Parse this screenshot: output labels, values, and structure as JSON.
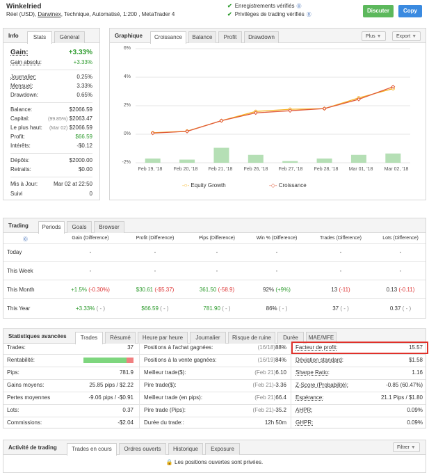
{
  "header": {
    "name": "Winkelried",
    "info_prefix": "Réel (USD),",
    "broker": "Darwinex",
    "info_suffix": ", Technique, Automatisé, 1:200 , MetaTrader 4",
    "verified_1": "Enregistrements vérifiés",
    "verified_2": "Privilèges de trading vérifiés",
    "btn_discuss": "Discuter",
    "btn_copy": "Copy",
    "colors": {
      "discuss": "#5cb85c",
      "copy": "#3a8ae0"
    }
  },
  "info": {
    "tabs": [
      "Info",
      "Stats",
      "Général"
    ],
    "gain_label": "Gain:",
    "gain_value": "+3.33%",
    "abs_label": "Gain absolu:",
    "abs_value": "+3.33%",
    "daily_label": "Journalier:",
    "daily_value": "0.25%",
    "monthly_label": "Mensuel:",
    "monthly_value": "3.33%",
    "dd_label": "Drawdown:",
    "dd_value": "0.65%",
    "balance_label": "Balance:",
    "balance_value": "$2066.59",
    "equity_label": "Capital:",
    "equity_pct": "(99.85%)",
    "equity_value": "$2063.47",
    "high_label": "Le plus haut:",
    "high_date": "(Mar 02)",
    "high_value": "$2066.59",
    "profit_label": "Profit:",
    "profit_value": "$66.59",
    "interest_label": "Intérêts:",
    "interest_value": "-$0.12",
    "deposits_label": "Dépôts:",
    "deposits_value": "$2000.00",
    "withdraw_label": "Retraits:",
    "withdraw_value": "$0.00",
    "updated_label": "Mis à Jour:",
    "updated_value": "Mar 02 at 22:50",
    "follow_label": "Suivi",
    "follow_value": "0"
  },
  "graph": {
    "title": "Graphique",
    "tabs": [
      "Croissance",
      "Balance",
      "Profit",
      "Drawdown"
    ],
    "btn_more": "Plus",
    "btn_export": "Export"
  },
  "chart_data": {
    "type": "line",
    "categories": [
      "Feb 19, '18",
      "Feb 20, '18",
      "Feb 21, '18",
      "Feb 26, '18",
      "Feb 27, '18",
      "Feb 28, '18",
      "Mar 01, '18",
      "Mar 02, '18"
    ],
    "y_ticks": [
      "6%",
      "4%",
      "2%",
      "0%",
      "-2%"
    ],
    "ylim": [
      -2,
      6
    ],
    "series": [
      {
        "name": "Equity Growth",
        "color": "#f5b324",
        "values": [
          0.1,
          0.22,
          0.95,
          1.6,
          1.75,
          1.8,
          2.55,
          3.2
        ]
      },
      {
        "name": "Croissance",
        "color": "#e05a3a",
        "values": [
          0.08,
          0.2,
          0.95,
          1.5,
          1.65,
          1.8,
          2.45,
          3.33
        ]
      }
    ],
    "bars": {
      "color": "#b5dfb5",
      "values": [
        0.3,
        0.22,
        1.05,
        0.55,
        0.12,
        0.3,
        0.55,
        0.65
      ]
    },
    "legend": "bottom"
  },
  "trading": {
    "title": "Trading",
    "tabs": [
      "Periods",
      "Goals",
      "Browser"
    ],
    "columns": [
      "Gain (Difference)",
      "Profit (Difference)",
      "Pips (Difference)",
      "Win % (Difference)",
      "Trades (Difference)",
      "Lots (Difference)"
    ],
    "rows": [
      {
        "label": "Today",
        "gain": "-",
        "profit": "-",
        "pips": "-",
        "win": "-",
        "trades": "-",
        "lots": "-"
      },
      {
        "label": "This Week",
        "gain": "-",
        "profit": "-",
        "pips": "-",
        "win": "-",
        "trades": "-",
        "lots": "-"
      },
      {
        "label": "This Month",
        "gain": "+1.5%",
        "gain_d": "(-0.30%)",
        "profit": "$30.61",
        "profit_d": "(-$5.37)",
        "pips": "361.50",
        "pips_d": "(-58.9)",
        "win": "92%",
        "win_d": "(+9%)",
        "trades": "13",
        "trades_d": "(-11)",
        "lots": "0.13",
        "lots_d": "(-0.11)"
      },
      {
        "label": "This Year",
        "gain": "+3.33%",
        "gain_d": "( - )",
        "profit": "$66.59",
        "profit_d": "( - )",
        "pips": "781.90",
        "pips_d": "( - )",
        "win": "86%",
        "win_d": "( - )",
        "trades": "37",
        "trades_d": "( - )",
        "lots": "0.37",
        "lots_d": "( - )"
      }
    ]
  },
  "advanced": {
    "title": "Statistiques avancées",
    "tabs": [
      "Trades",
      "Résumé",
      "Heure par heure",
      "Journalier",
      "Risque de ruine",
      "Durée",
      "MAE/MFE"
    ],
    "col1": [
      {
        "k": "Trades:",
        "v": "37"
      },
      {
        "k": "Rentabilité:",
        "v": ""
      },
      {
        "k": "Pips:",
        "v": "781.9"
      },
      {
        "k": "Gains moyens:",
        "v": "25.85 pips / $2.22"
      },
      {
        "k": "Pertes moyennes",
        "v": "-9.06 pips / -$0.91"
      },
      {
        "k": "Lots:",
        "v": "0.37"
      },
      {
        "k": "Commissions:",
        "v": "-$2.04"
      }
    ],
    "profitability": {
      "win": 0.86,
      "win_color": "#7ed67e",
      "loss_color": "#f08080"
    },
    "col2": [
      {
        "k": "Positions à l'achat gagnées:",
        "d": "(16/18)",
        "v": "88%"
      },
      {
        "k": "Positions à la vente gagnées:",
        "d": "(16/19)",
        "v": "84%"
      },
      {
        "k": "Meilleur trade($):",
        "d": "(Feb 21)",
        "v": "6.10"
      },
      {
        "k": "Pire trade($):",
        "d": "(Feb 21)",
        "v": "-3.36"
      },
      {
        "k": "Meilleur trade (en pips):",
        "d": "(Feb 21)",
        "v": "66.4"
      },
      {
        "k": "Pire trade (Pips):",
        "d": "(Feb 21)",
        "v": "-35.2"
      },
      {
        "k": "Durée du trade::",
        "d": "",
        "v": "12h 50m"
      }
    ],
    "col3": [
      {
        "k": "Facteur de profit:",
        "v": "15.57"
      },
      {
        "k": "Déviation standard:",
        "v": "$1.58"
      },
      {
        "k": "Sharpe Ratio:",
        "v": "1.16"
      },
      {
        "k": "Z-Score (Probabilité):",
        "v": "-0.85 (60.47%)"
      },
      {
        "k": "Espérance:",
        "v": "21.1 Pips / $1.80"
      },
      {
        "k": "AHPR:",
        "v": "0.09%"
      },
      {
        "k": "GHPR:",
        "v": "0.09%"
      }
    ]
  },
  "activity": {
    "title": "Activité de trading",
    "tabs": [
      "Trades en cours",
      "Ordres ouverts",
      "Historique",
      "Exposure"
    ],
    "btn_filter": "Filtrer",
    "message": "Les positions ouvertes sont privées."
  }
}
